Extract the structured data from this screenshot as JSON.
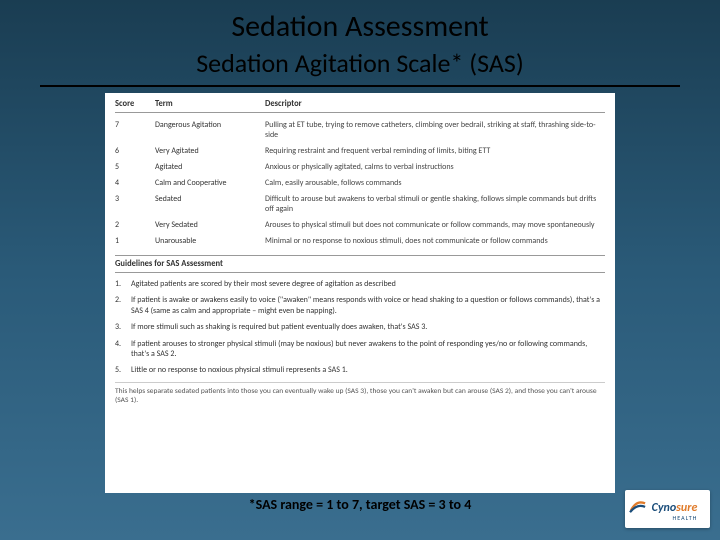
{
  "title": "Sedation Assessment",
  "subtitle": "Sedation Agitation Scale* (SAS)",
  "table": {
    "headers": {
      "score": "Score",
      "term": "Term",
      "descriptor": "Descriptor"
    },
    "rows": [
      {
        "score": "7",
        "term": "Dangerous Agitation",
        "desc": "Pulling at ET tube, trying to remove catheters, climbing over bedrail, striking at staff, thrashing side-to-side"
      },
      {
        "score": "6",
        "term": "Very Agitated",
        "desc": "Requiring restraint and frequent verbal reminding of limits, biting ETT"
      },
      {
        "score": "5",
        "term": "Agitated",
        "desc": "Anxious or physically agitated, calms to verbal instructions"
      },
      {
        "score": "4",
        "term": "Calm and Cooperative",
        "desc": "Calm, easily arousable, follows commands"
      },
      {
        "score": "3",
        "term": "Sedated",
        "desc": "Difficult to arouse but awakens to verbal stimuli or gentle shaking, follows simple commands but drifts off again"
      },
      {
        "score": "2",
        "term": "Very Sedated",
        "desc": "Arouses to physical stimuli but does not communicate or follow commands, may move spontaneously"
      },
      {
        "score": "1",
        "term": "Unarousable",
        "desc": "Minimal or no response to noxious stimuli, does not communicate or follow commands"
      }
    ]
  },
  "guidelines": {
    "header": "Guidelines for SAS Assessment",
    "items": [
      {
        "n": "1.",
        "text": "Agitated patients are scored by their most severe degree of agitation as described"
      },
      {
        "n": "2.",
        "text": "If patient is awake or awakens easily to voice (\"awaken\" means responds with voice or head shaking to a question or follows commands), that's a SAS 4 (same as calm and appropriate – might even be napping)."
      },
      {
        "n": "3.",
        "text": "If more stimuli such as shaking is required but patient eventually does awaken, that's SAS 3."
      },
      {
        "n": "4.",
        "text": "If patient arouses to stronger physical stimuli (may be noxious) but never awakens to the point of responding yes/no or following commands, that's a SAS 2."
      },
      {
        "n": "5.",
        "text": "Little or no response to noxious physical stimuli represents a SAS 1."
      }
    ],
    "note": "This helps separate sedated patients into those you can eventually wake up (SAS 3), those you can't awaken but can arouse (SAS 2), and those you can't arouse (SAS 1)."
  },
  "footnote": "*SAS range = 1 to 7,  target SAS = 3 to 4",
  "logo": {
    "part1": "Cyno",
    "part2": "sure",
    "sub": "HEALTH"
  }
}
